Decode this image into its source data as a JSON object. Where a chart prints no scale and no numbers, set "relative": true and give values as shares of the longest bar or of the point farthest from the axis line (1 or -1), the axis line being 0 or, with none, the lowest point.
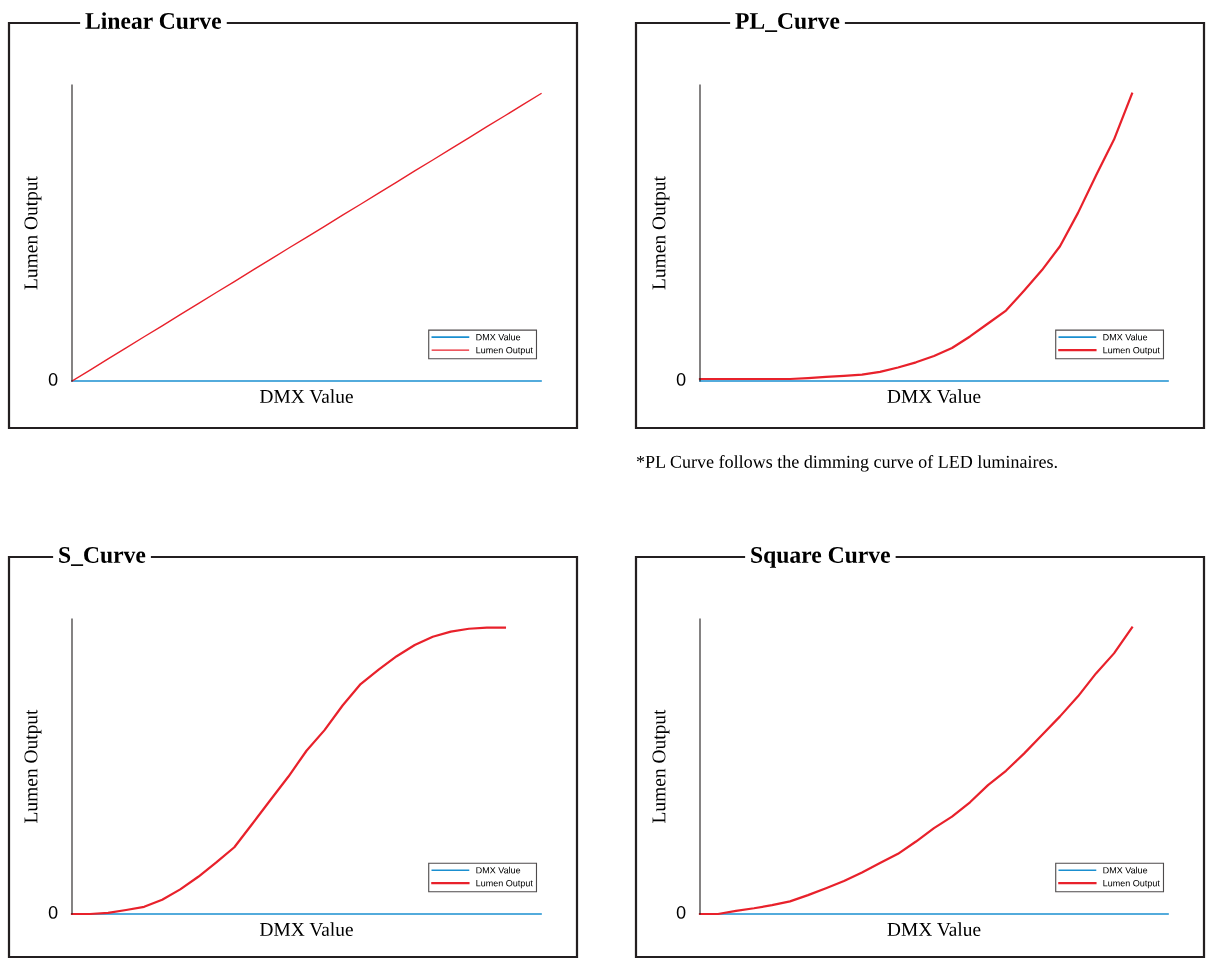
{
  "chart_data": [
    {
      "type": "line",
      "title": "Linear Curve",
      "xlabel": "DMX Value",
      "ylabel": "Lumen Output",
      "relative": true,
      "legend": "bottom right",
      "annotations": [
        "0"
      ],
      "categories": [
        null,
        null,
        null,
        null,
        null,
        null,
        null,
        null,
        null,
        null,
        null,
        null,
        null,
        null,
        null,
        null,
        null,
        null,
        null,
        null,
        null,
        null,
        null,
        null,
        null,
        null,
        null
      ],
      "series": [
        {
          "name": "DMX Value",
          "color": "#1a8fd0",
          "values": [
            0,
            0,
            0,
            0,
            0,
            0,
            0,
            0,
            0,
            0,
            0,
            0,
            0,
            0,
            0,
            0,
            0,
            0,
            0,
            0,
            0,
            0,
            0,
            0,
            0,
            0,
            0
          ]
        },
        {
          "name": "Lumen Output",
          "color": "#e8212b",
          "values": [
            0,
            0.038,
            0.077,
            0.115,
            0.154,
            0.192,
            0.231,
            0.269,
            0.308,
            0.346,
            0.385,
            0.423,
            0.462,
            0.5,
            0.538,
            0.577,
            0.615,
            0.654,
            0.692,
            0.731,
            0.769,
            0.808,
            0.846,
            0.885,
            0.923,
            0.962,
            1
          ]
        }
      ]
    },
    {
      "type": "line",
      "title": "PL_Curve",
      "xlabel": "DMX Value",
      "ylabel": "Lumen Output",
      "relative": true,
      "legend": "bottom right",
      "annotations": [
        "0",
        "*PL Curve follows the dimming curve of LED luminaires."
      ],
      "categories": [
        null,
        null,
        null,
        null,
        null,
        null,
        null,
        null,
        null,
        null,
        null,
        null,
        null,
        null,
        null,
        null,
        null,
        null,
        null,
        null,
        null,
        null,
        null,
        null,
        null,
        null,
        null
      ],
      "series": [
        {
          "name": "DMX Value",
          "color": "#1a8fd0",
          "values": [
            0,
            0,
            0,
            0,
            0,
            0,
            0,
            0,
            0,
            0,
            0,
            0,
            0,
            0,
            0,
            0,
            0,
            0,
            0,
            0,
            0,
            0,
            0,
            0,
            0,
            0,
            0
          ]
        },
        {
          "name": "Lumen Output",
          "color": "#e8212b",
          "values": [
            0.007,
            0.007,
            0.007,
            0.007,
            0.007,
            0.007,
            0.01,
            0.014,
            0.018,
            0.022,
            0.032,
            0.047,
            0.065,
            0.087,
            0.115,
            0.155,
            0.2,
            0.245,
            0.314,
            0.386,
            0.469,
            0.585,
            0.715,
            0.84,
            1,
            null,
            null
          ]
        }
      ]
    },
    {
      "type": "line",
      "title": "S_Curve",
      "xlabel": "DMX Value",
      "ylabel": "Lumen Output",
      "relative": true,
      "legend": "bottom right",
      "annotations": [
        "0"
      ],
      "categories": [
        null,
        null,
        null,
        null,
        null,
        null,
        null,
        null,
        null,
        null,
        null,
        null,
        null,
        null,
        null,
        null,
        null,
        null,
        null,
        null,
        null,
        null,
        null,
        null,
        null,
        null,
        null
      ],
      "series": [
        {
          "name": "DMX Value",
          "color": "#1a8fd0",
          "values": [
            0,
            0,
            0,
            0,
            0,
            0,
            0,
            0,
            0,
            0,
            0,
            0,
            0,
            0,
            0,
            0,
            0,
            0,
            0,
            0,
            0,
            0,
            0,
            0,
            0,
            0,
            0
          ]
        },
        {
          "name": "Lumen Output",
          "color": "#e8212b",
          "values": [
            0,
            0,
            0.004,
            0.014,
            0.025,
            0.05,
            0.086,
            0.13,
            0.18,
            0.233,
            0.315,
            0.398,
            0.48,
            0.57,
            0.642,
            0.728,
            0.803,
            0.853,
            0.9,
            0.939,
            0.968,
            0.986,
            0.996,
            1,
            1,
            null,
            null
          ]
        }
      ]
    },
    {
      "type": "line",
      "title": "Square Curve",
      "xlabel": "DMX Value",
      "ylabel": "Lumen Output",
      "relative": true,
      "legend": "bottom right",
      "annotations": [
        "0"
      ],
      "categories": [
        null,
        null,
        null,
        null,
        null,
        null,
        null,
        null,
        null,
        null,
        null,
        null,
        null,
        null,
        null,
        null,
        null,
        null,
        null,
        null,
        null,
        null,
        null,
        null,
        null,
        null,
        null
      ],
      "series": [
        {
          "name": "DMX Value",
          "color": "#1a8fd0",
          "values": [
            0,
            0,
            0,
            0,
            0,
            0,
            0,
            0,
            0,
            0,
            0,
            0,
            0,
            0,
            0,
            0,
            0,
            0,
            0,
            0,
            0,
            0,
            0,
            0,
            0,
            0,
            0
          ]
        },
        {
          "name": "Lumen Output",
          "color": "#e8212b",
          "values": [
            0,
            0,
            0.011,
            0.02,
            0.031,
            0.044,
            0.066,
            0.09,
            0.115,
            0.145,
            0.178,
            0.21,
            0.253,
            0.3,
            0.34,
            0.39,
            0.45,
            0.5,
            0.56,
            0.625,
            0.69,
            0.76,
            0.84,
            0.91,
            1,
            null,
            null
          ]
        }
      ]
    }
  ]
}
